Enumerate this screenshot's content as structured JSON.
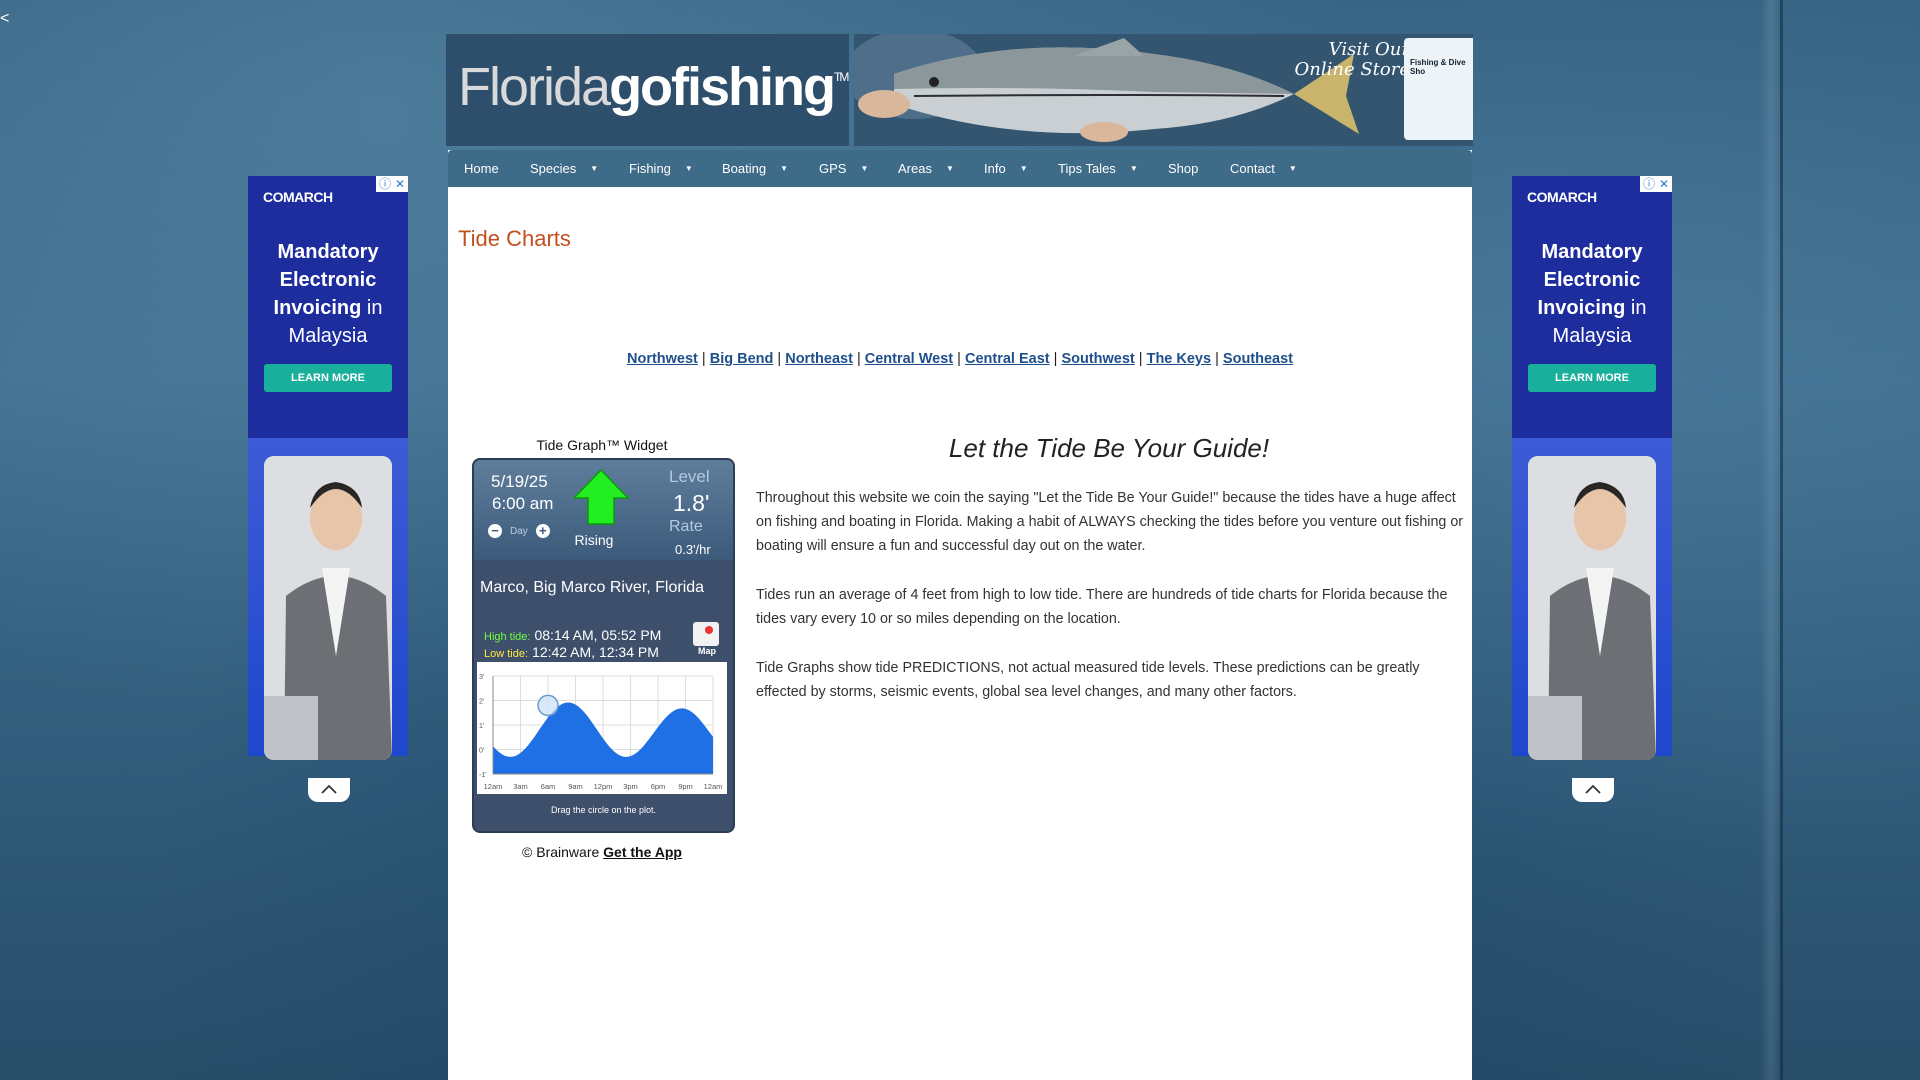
{
  "edge_glyph": "<",
  "header": {
    "logo_light": "Florida",
    "logo_bold": "gofishing",
    "logo_tm": "TM",
    "store_line1": "Visit Our",
    "store_line2": "Online Store",
    "store_card_label": "Fishing & Dive Sho"
  },
  "nav": {
    "items": [
      {
        "label": "Home",
        "dropdown": false
      },
      {
        "label": "Species",
        "dropdown": true
      },
      {
        "label": "Fishing",
        "dropdown": true
      },
      {
        "label": "Boating",
        "dropdown": true
      },
      {
        "label": "GPS",
        "dropdown": true
      },
      {
        "label": "Areas",
        "dropdown": true
      },
      {
        "label": "Info",
        "dropdown": true
      },
      {
        "label": "Tips Tales",
        "dropdown": true
      },
      {
        "label": "Shop",
        "dropdown": false
      },
      {
        "label": "Contact",
        "dropdown": true
      }
    ],
    "bg_color": "#3e6b88"
  },
  "page_title": "Tide Charts",
  "regions": [
    "Northwest",
    "Big Bend",
    "Northeast",
    "Central West",
    "Central East",
    "Southwest",
    "The Keys",
    "Southeast"
  ],
  "region_separator": "|",
  "widget": {
    "title": "Tide Graph™ Widget",
    "date": "5/19/25",
    "time": "6:00 am",
    "day_label": "Day",
    "minus": "−",
    "plus": "+",
    "trend": "Rising",
    "level_label": "Level",
    "level": "1.8'",
    "rate_label": "Rate",
    "rate": "0.3'/hr",
    "location": "Marco, Big Marco River, Florida",
    "high_label": "High tide:",
    "high_times": "08:14 AM, 05:52 PM",
    "low_label": "Low tide:",
    "low_times": "12:42 AM, 12:34 PM",
    "map_label": "Map",
    "hint": "Drag the circle on the plot.",
    "y_ticks": [
      "3'",
      "2'",
      "1'",
      "0'",
      "-1'"
    ],
    "x_ticks": [
      "12am",
      "3am",
      "6am",
      "9am",
      "12pm",
      "3pm",
      "6pm",
      "9pm",
      "12am"
    ],
    "marker_hour": 6,
    "marker_level": 1.8
  },
  "credit": {
    "text": "© Brainware ",
    "link": "Get the App"
  },
  "article": {
    "heading": "Let the Tide Be Your Guide!",
    "p1": "Throughout this website we coin the saying \"Let the Tide Be Your Guide!\" because the tides have a huge affect on fishing and boating in Florida. Making a habit of ALWAYS checking the tides before you venture out fishing or boating will ensure a fun and successful day out on the water.",
    "p2": "Tides run an average of 4 feet from high to low tide. There are hundreds of tide charts for Florida because the tides vary every 10 or so miles depending on the location.",
    "p3": "Tide Graphs show tide PREDICTIONS, not actual measured tide levels. These predictions can be greatly effected by storms, seismic events, global sea level changes, and many other factors."
  },
  "ad": {
    "brand": "COMARCH",
    "headline_bold": "Mandatory Electronic Invoicing",
    "headline_rest": " in Malaysia",
    "button": "LEARN MORE",
    "info_icon": "ⓘ",
    "close_icon": "✕"
  },
  "colors": {
    "title": "#c0501e",
    "link": "#1e4f8c",
    "ad_bg": "#1d2d9e",
    "ad_button": "#1aaf9b",
    "tide_fill": "#1f6fe5"
  }
}
